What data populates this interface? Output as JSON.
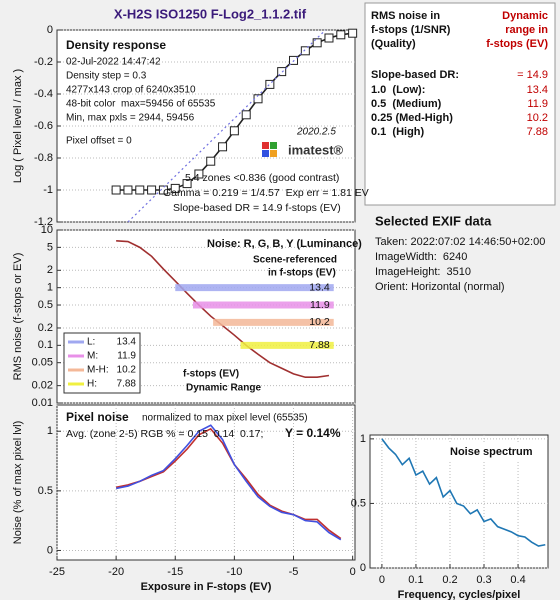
{
  "title": "X-H2S ISO1250 F-Log2_1.1.2.tif",
  "chart_data": [
    {
      "type": "line",
      "title": "Density response",
      "ylabel": "Log ( Pixel level / max )",
      "info": [
        "02-Jul-2022 14:47:42",
        "Density step = 0.3",
        "4277x143 crop of 6240x3510",
        "48-bit color  max=59456 of 65535",
        "Min, max pxls = 2944, 59456",
        "Pixel offset = 0"
      ],
      "version": "2020.2.5",
      "logo": "imatest®",
      "notes": [
        "5.4 zones <0.836 (good contrast)",
        "Gamma = 0.219 = 1/4.57  Exp err = 1.81 EV",
        "Slope-based DR = 14.9 f-stops (EV)"
      ],
      "xlim": [
        -25,
        0.2
      ],
      "ylim": [
        -1.2,
        0
      ],
      "yticks": [
        0,
        -0.2,
        -0.4,
        -0.6,
        -0.8,
        -1,
        -1.2
      ],
      "grid": true,
      "series": [
        {
          "color": "#222222",
          "marker": "square",
          "x": [
            -20,
            -19,
            -18,
            -17,
            -16,
            -15,
            -14,
            -13,
            -12,
            -11,
            -10,
            -9,
            -8,
            -7,
            -6,
            -5,
            -4,
            -3,
            -2,
            -1,
            0
          ],
          "values": [
            -1,
            -1,
            -1,
            -1,
            -1,
            -0.99,
            -0.96,
            -0.9,
            -0.82,
            -0.73,
            -0.63,
            -0.53,
            -0.43,
            -0.34,
            -0.26,
            -0.19,
            -0.13,
            -0.08,
            -0.05,
            -0.03,
            -0.02
          ]
        },
        {
          "color": "#7070e0",
          "dash": true,
          "x": [
            -19,
            -2.3
          ],
          "values": [
            -1.2,
            0
          ]
        }
      ]
    },
    {
      "type": "line",
      "log_y": true,
      "title": "Noise: R, G, B, Y (Luminance)",
      "ylabel": "RMS noise (f-stops or EV)",
      "notes": [
        "Scene-referenced",
        "in f-stops (EV)"
      ],
      "dr_caption": [
        "f-stops (EV)",
        "Dynamic Range"
      ],
      "xlim": [
        -25,
        0.2
      ],
      "ylim": [
        0.01,
        10
      ],
      "yticks": [
        10,
        5,
        2,
        1,
        0.5,
        0.2,
        0.1,
        0.05,
        0.02,
        0.01
      ],
      "grid": true,
      "series": [
        {
          "color": "#a03030",
          "x": [
            -20,
            -19,
            -18,
            -17,
            -16,
            -15,
            -14,
            -13,
            -12,
            -11,
            -10,
            -9,
            -8,
            -7,
            -6,
            -5,
            -4,
            -3,
            -2
          ],
          "values": [
            6.5,
            6.3,
            5,
            3.5,
            2.1,
            1.3,
            0.8,
            0.5,
            0.32,
            0.22,
            0.15,
            0.1,
            0.07,
            0.05,
            0.04,
            0.032,
            0.028,
            0.028,
            0.03
          ]
        }
      ],
      "ranges": [
        {
          "name": "L:",
          "value": 13.4,
          "noise": 1,
          "x_end": -1.6,
          "color": "#a0a8f0"
        },
        {
          "name": "M:",
          "value": 11.9,
          "noise": 0.5,
          "x_end": -1.6,
          "color": "#e890e8"
        },
        {
          "name": "M-H:",
          "value": 10.2,
          "noise": 0.25,
          "x_end": -1.6,
          "color": "#f4b898"
        },
        {
          "name": "H:",
          "value": 7.88,
          "noise": 0.1,
          "x_end": -1.6,
          "color": "#f0f040"
        }
      ]
    },
    {
      "type": "line",
      "title": "Pixel noise",
      "subtitle": "normalized to max pixel level (65535)",
      "notes": [
        "Avg. (zone 2-5) RGB % = 0.15  0.14  0.17;",
        "Y = 0.14%"
      ],
      "ylabel": "Noise (% of max pixel lvl)",
      "xlabel": "Exposure in F-stops (EV)",
      "xlim": [
        -25,
        0.2
      ],
      "xticks": [
        -25,
        -20,
        -15,
        -10,
        -5,
        0
      ],
      "ylim": [
        -0.08,
        1.22
      ],
      "yticks": [
        0,
        0.5,
        1
      ],
      "grid": true,
      "series": [
        {
          "color": "#c03030",
          "x": [
            -20,
            -19,
            -18,
            -17,
            -16,
            -15,
            -14,
            -13,
            -12,
            -11,
            -10,
            -9,
            -8,
            -7,
            -6,
            -5,
            -4,
            -3,
            -2,
            -1
          ],
          "values": [
            0.53,
            0.55,
            0.58,
            0.62,
            0.66,
            0.75,
            0.85,
            0.97,
            1.02,
            0.9,
            0.72,
            0.6,
            0.47,
            0.38,
            0.33,
            0.3,
            0.26,
            0.26,
            0.17,
            0.1
          ]
        },
        {
          "color": "#4050e0",
          "x": [
            -20,
            -19,
            -18,
            -17,
            -16,
            -15,
            -14,
            -13,
            -12,
            -11,
            -10,
            -9,
            -8,
            -7,
            -6,
            -5,
            -4,
            -3,
            -2,
            -1
          ],
          "values": [
            0.52,
            0.54,
            0.58,
            0.63,
            0.67,
            0.77,
            0.88,
            1.0,
            1.05,
            0.93,
            0.72,
            0.58,
            0.45,
            0.37,
            0.32,
            0.3,
            0.25,
            0.24,
            0.15,
            0.09
          ]
        }
      ]
    },
    {
      "type": "line",
      "title": "Noise spectrum",
      "xlabel": "Frequency, cycles/pixel",
      "xlim": [
        -0.035,
        0.488
      ],
      "xticks": [
        0,
        0.1,
        0.2,
        0.3,
        0.4
      ],
      "ylim": [
        0,
        1.03
      ],
      "yticks": [
        0,
        0.5,
        1
      ],
      "grid": true,
      "series": [
        {
          "color": "#1f77b4",
          "x": [
            0,
            0.02,
            0.04,
            0.06,
            0.08,
            0.1,
            0.12,
            0.14,
            0.16,
            0.18,
            0.2,
            0.22,
            0.24,
            0.26,
            0.28,
            0.3,
            0.32,
            0.34,
            0.36,
            0.38,
            0.4,
            0.42,
            0.44,
            0.46,
            0.48
          ],
          "values": [
            1.0,
            0.93,
            0.88,
            0.8,
            0.85,
            0.72,
            0.75,
            0.65,
            0.7,
            0.55,
            0.6,
            0.5,
            0.48,
            0.42,
            0.45,
            0.36,
            0.38,
            0.32,
            0.3,
            0.28,
            0.25,
            0.24,
            0.2,
            0.17,
            0.18
          ]
        }
      ]
    }
  ],
  "dr_table": {
    "header_left": [
      "RMS noise in",
      "f-stops (1/SNR)",
      "(Quality)"
    ],
    "header_right": [
      "Dynamic",
      "range in",
      "f-stops (EV)"
    ],
    "rows": [
      [
        "Slope-based DR:",
        "= 14.9"
      ],
      [
        "1.0  (Low):",
        13.4
      ],
      [
        "0.5  (Medium)",
        11.9
      ],
      [
        "0.25 (Med-High)",
        10.2
      ],
      [
        "0.1  (High)",
        7.88
      ]
    ]
  },
  "exif": {
    "title": "Selected EXIF data",
    "lines": [
      "Taken: 2022:07:02 14:46:50+02:00",
      "ImageWidth:  6240",
      "ImageHeight:  3510",
      "Orient: Horizontal (normal)"
    ]
  }
}
